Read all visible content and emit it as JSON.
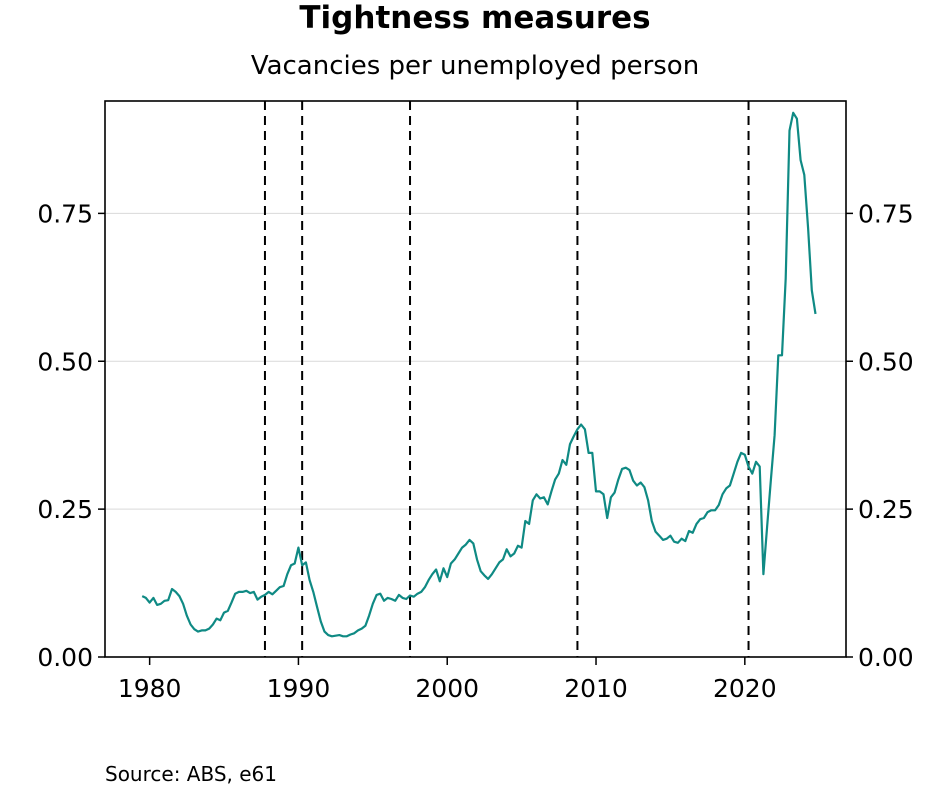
{
  "title": "Tightness measures",
  "subtitle": "Vacancies per unemployed person",
  "source": "Source: ABS, e61",
  "chart_data": {
    "type": "line",
    "title": "Tightness measures",
    "subtitle": "Vacancies per unemployed person",
    "xlabel": "",
    "ylabel": "",
    "xlim": [
      1977,
      2026.8
    ],
    "ylim": [
      0,
      0.94
    ],
    "x_ticks": [
      "1980",
      "1990",
      "2000",
      "2010",
      "2020"
    ],
    "y_ticks": [
      "0.00",
      "0.25",
      "0.50",
      "0.75"
    ],
    "y_axis_both_sides": true,
    "grid": "horizontal",
    "line_color": "#0f8a84",
    "recession_lines": [
      1987.75,
      1990.25,
      1997.5,
      2008.75,
      2020.25
    ],
    "series": [
      {
        "values": [
          [
            1979.5,
            0.103
          ],
          [
            1979.75,
            0.1
          ],
          [
            1980.0,
            0.092
          ],
          [
            1980.25,
            0.1
          ],
          [
            1980.5,
            0.088
          ],
          [
            1980.75,
            0.09
          ],
          [
            1981.0,
            0.095
          ],
          [
            1981.25,
            0.096
          ],
          [
            1981.5,
            0.115
          ],
          [
            1981.75,
            0.11
          ],
          [
            1982.0,
            0.103
          ],
          [
            1982.25,
            0.09
          ],
          [
            1982.5,
            0.07
          ],
          [
            1982.75,
            0.055
          ],
          [
            1983.0,
            0.047
          ],
          [
            1983.25,
            0.043
          ],
          [
            1983.5,
            0.045
          ],
          [
            1983.75,
            0.045
          ],
          [
            1984.0,
            0.048
          ],
          [
            1984.25,
            0.055
          ],
          [
            1984.5,
            0.065
          ],
          [
            1984.75,
            0.062
          ],
          [
            1985.0,
            0.075
          ],
          [
            1985.25,
            0.078
          ],
          [
            1985.5,
            0.092
          ],
          [
            1985.75,
            0.107
          ],
          [
            1986.0,
            0.11
          ],
          [
            1986.25,
            0.11
          ],
          [
            1986.5,
            0.112
          ],
          [
            1986.75,
            0.108
          ],
          [
            1987.0,
            0.11
          ],
          [
            1987.25,
            0.097
          ],
          [
            1987.5,
            0.102
          ],
          [
            1987.75,
            0.105
          ],
          [
            1988.0,
            0.11
          ],
          [
            1988.25,
            0.106
          ],
          [
            1988.5,
            0.112
          ],
          [
            1988.75,
            0.118
          ],
          [
            1989.0,
            0.12
          ],
          [
            1989.25,
            0.14
          ],
          [
            1989.5,
            0.155
          ],
          [
            1989.75,
            0.158
          ],
          [
            1990.0,
            0.185
          ],
          [
            1990.25,
            0.155
          ],
          [
            1990.5,
            0.16
          ],
          [
            1990.75,
            0.13
          ],
          [
            1991.0,
            0.11
          ],
          [
            1991.25,
            0.085
          ],
          [
            1991.5,
            0.06
          ],
          [
            1991.75,
            0.043
          ],
          [
            1992.0,
            0.037
          ],
          [
            1992.25,
            0.035
          ],
          [
            1992.5,
            0.036
          ],
          [
            1992.75,
            0.037
          ],
          [
            1993.0,
            0.035
          ],
          [
            1993.25,
            0.035
          ],
          [
            1993.5,
            0.038
          ],
          [
            1993.75,
            0.04
          ],
          [
            1994.0,
            0.045
          ],
          [
            1994.25,
            0.048
          ],
          [
            1994.5,
            0.053
          ],
          [
            1994.75,
            0.07
          ],
          [
            1995.0,
            0.09
          ],
          [
            1995.25,
            0.105
          ],
          [
            1995.5,
            0.107
          ],
          [
            1995.75,
            0.095
          ],
          [
            1996.0,
            0.1
          ],
          [
            1996.25,
            0.098
          ],
          [
            1996.5,
            0.095
          ],
          [
            1996.75,
            0.105
          ],
          [
            1997.0,
            0.1
          ],
          [
            1997.25,
            0.098
          ],
          [
            1997.5,
            0.104
          ],
          [
            1997.75,
            0.102
          ],
          [
            1998.0,
            0.107
          ],
          [
            1998.25,
            0.11
          ],
          [
            1998.5,
            0.118
          ],
          [
            1998.75,
            0.13
          ],
          [
            1999.0,
            0.14
          ],
          [
            1999.25,
            0.148
          ],
          [
            1999.5,
            0.128
          ],
          [
            1999.75,
            0.15
          ],
          [
            2000.0,
            0.135
          ],
          [
            2000.25,
            0.158
          ],
          [
            2000.5,
            0.165
          ],
          [
            2000.75,
            0.175
          ],
          [
            2001.0,
            0.185
          ],
          [
            2001.25,
            0.19
          ],
          [
            2001.5,
            0.198
          ],
          [
            2001.75,
            0.192
          ],
          [
            2002.0,
            0.165
          ],
          [
            2002.25,
            0.145
          ],
          [
            2002.5,
            0.138
          ],
          [
            2002.75,
            0.132
          ],
          [
            2003.0,
            0.14
          ],
          [
            2003.25,
            0.15
          ],
          [
            2003.5,
            0.16
          ],
          [
            2003.75,
            0.165
          ],
          [
            2004.0,
            0.182
          ],
          [
            2004.25,
            0.17
          ],
          [
            2004.5,
            0.175
          ],
          [
            2004.75,
            0.188
          ],
          [
            2005.0,
            0.185
          ],
          [
            2005.25,
            0.23
          ],
          [
            2005.5,
            0.225
          ],
          [
            2005.75,
            0.265
          ],
          [
            2006.0,
            0.275
          ],
          [
            2006.25,
            0.268
          ],
          [
            2006.5,
            0.27
          ],
          [
            2006.75,
            0.258
          ],
          [
            2007.0,
            0.28
          ],
          [
            2007.25,
            0.3
          ],
          [
            2007.5,
            0.31
          ],
          [
            2007.75,
            0.333
          ],
          [
            2008.0,
            0.325
          ],
          [
            2008.25,
            0.36
          ],
          [
            2008.5,
            0.373
          ],
          [
            2008.75,
            0.385
          ],
          [
            2009.0,
            0.393
          ],
          [
            2009.25,
            0.385
          ],
          [
            2009.5,
            0.345
          ],
          [
            2009.75,
            0.345
          ],
          [
            2010.0,
            0.28
          ],
          [
            2010.25,
            0.28
          ],
          [
            2010.5,
            0.275
          ],
          [
            2010.75,
            0.235
          ],
          [
            2011.0,
            0.27
          ],
          [
            2011.25,
            0.278
          ],
          [
            2011.5,
            0.3
          ],
          [
            2011.75,
            0.318
          ],
          [
            2012.0,
            0.32
          ],
          [
            2012.25,
            0.316
          ],
          [
            2012.5,
            0.298
          ],
          [
            2012.75,
            0.29
          ],
          [
            2013.0,
            0.295
          ],
          [
            2013.25,
            0.287
          ],
          [
            2013.5,
            0.265
          ],
          [
            2013.75,
            0.23
          ],
          [
            2014.0,
            0.212
          ],
          [
            2014.25,
            0.205
          ],
          [
            2014.5,
            0.198
          ],
          [
            2014.75,
            0.2
          ],
          [
            2015.0,
            0.205
          ],
          [
            2015.25,
            0.195
          ],
          [
            2015.5,
            0.193
          ],
          [
            2015.75,
            0.2
          ],
          [
            2016.0,
            0.196
          ],
          [
            2016.25,
            0.213
          ],
          [
            2016.5,
            0.21
          ],
          [
            2016.75,
            0.225
          ],
          [
            2017.0,
            0.233
          ],
          [
            2017.25,
            0.235
          ],
          [
            2017.5,
            0.245
          ],
          [
            2017.75,
            0.248
          ],
          [
            2018.0,
            0.248
          ],
          [
            2018.25,
            0.257
          ],
          [
            2018.5,
            0.275
          ],
          [
            2018.75,
            0.285
          ],
          [
            2019.0,
            0.29
          ],
          [
            2019.25,
            0.31
          ],
          [
            2019.5,
            0.33
          ],
          [
            2019.75,
            0.345
          ],
          [
            2020.0,
            0.342
          ],
          [
            2020.25,
            0.322
          ],
          [
            2020.5,
            0.31
          ],
          [
            2020.75,
            0.33
          ],
          [
            2021.0,
            0.322
          ],
          [
            2021.25,
            0.14
          ],
          [
            2021.5,
            0.22
          ],
          [
            2021.75,
            0.3
          ],
          [
            2022.0,
            0.375
          ],
          [
            2022.25,
            0.51
          ],
          [
            2022.5,
            0.51
          ],
          [
            2022.75,
            0.64
          ],
          [
            2023.0,
            0.89
          ],
          [
            2023.25,
            0.92
          ],
          [
            2023.5,
            0.91
          ],
          [
            2023.75,
            0.84
          ],
          [
            2024.0,
            0.815
          ],
          [
            2024.25,
            0.725
          ],
          [
            2024.5,
            0.62
          ],
          [
            2024.75,
            0.58
          ]
        ]
      }
    ]
  }
}
